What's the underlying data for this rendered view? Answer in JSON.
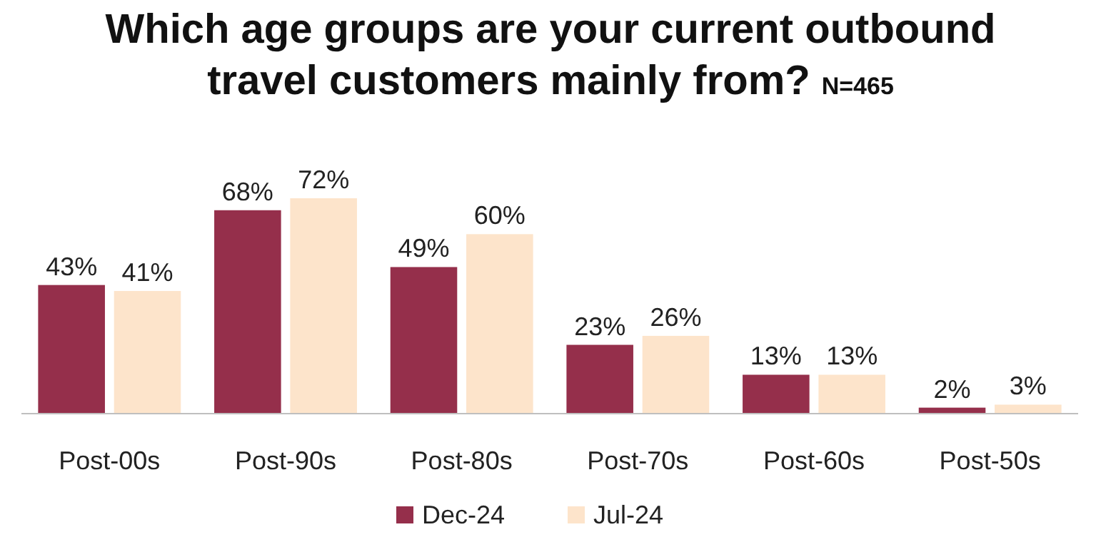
{
  "chart_data": {
    "type": "bar",
    "title": "Which age groups are your current outbound travel customers mainly from?",
    "subtitle": "N=465",
    "categories": [
      "Post-00s",
      "Post-90s",
      "Post-80s",
      "Post-70s",
      "Post-60s",
      "Post-50s"
    ],
    "series": [
      {
        "name": "Dec-24",
        "color": "#952f4b",
        "values": [
          43,
          68,
          49,
          23,
          13,
          2
        ],
        "value_labels": [
          "43%",
          "68%",
          "49%",
          "23%",
          "13%",
          "2%"
        ]
      },
      {
        "name": "Jul-24",
        "color": "#fde4cb",
        "values": [
          41,
          72,
          60,
          26,
          13,
          3
        ],
        "value_labels": [
          "41%",
          "72%",
          "60%",
          "26%",
          "13%",
          "3%"
        ]
      }
    ],
    "legend": "bottom"
  }
}
